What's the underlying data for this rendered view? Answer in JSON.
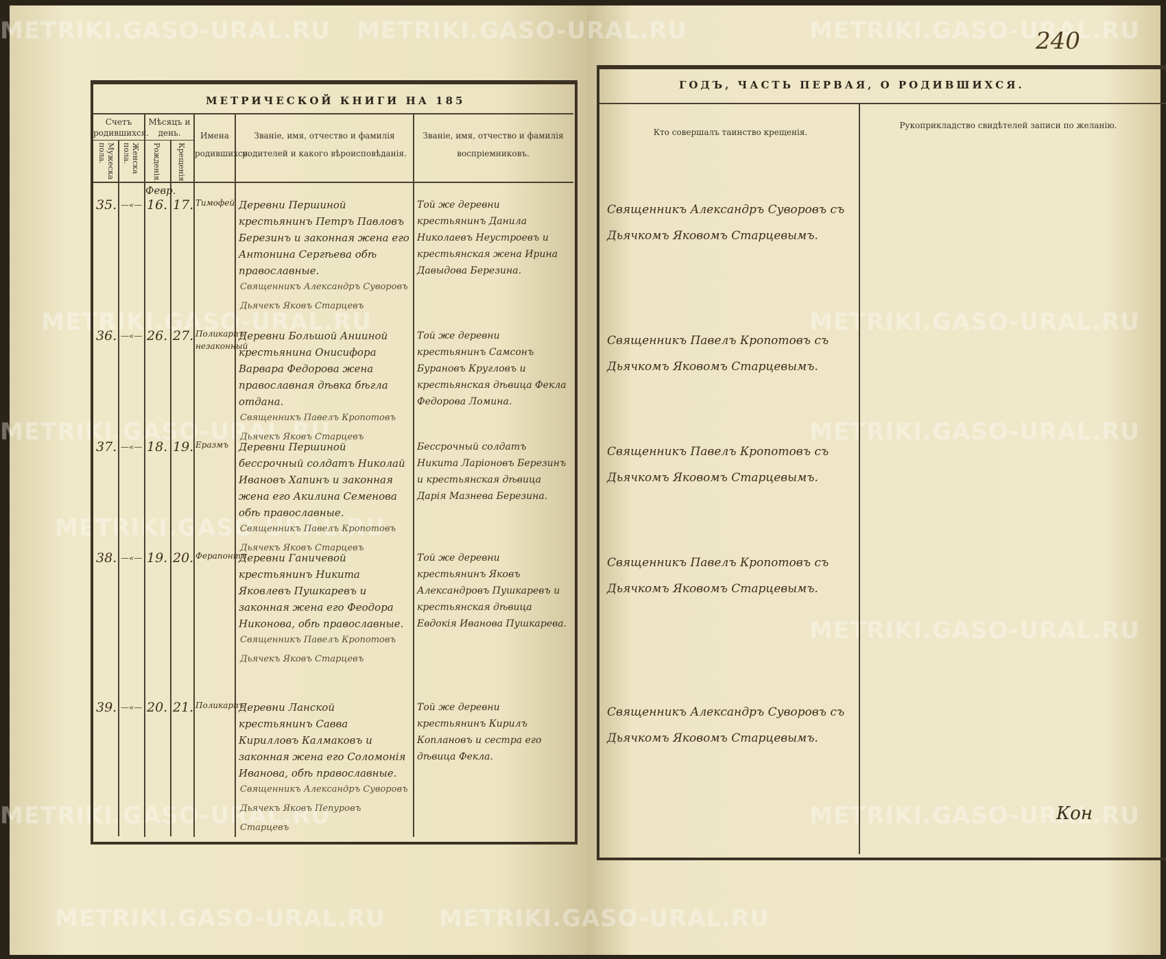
{
  "watermark": "METRIKI.GASO-URAL.RU",
  "left_page": {
    "title": "МЕТРИЧЕСКОЙ КНИГИ НА 185",
    "headers": {
      "count": "Счетъ родившихся.",
      "male": "Мужеска пола.",
      "female": "Женска пола.",
      "month_day": "Мѣсяцъ и день.",
      "birth": "Рожденія.",
      "baptism": "Крещенія.",
      "names": "Имена родившихся.",
      "parents": "Званіе, имя, отчество и фамилія родителей и какого вѣроисповѣданія.",
      "godparents": "Званіе, имя, отчество и фамилія воспріемниковъ."
    },
    "month": "Февр.",
    "entries": [
      {
        "no": "35.",
        "sex": "—«—",
        "birth": "16.",
        "baptism": "17.",
        "name": "Тимофей",
        "parents": "Деревни Першиной крестьянинъ Петръ Павловъ Березинъ и законная жена его Антонина Сергѣева обѣ православные.",
        "godparents": "Той же деревни крестьянинъ Данила Николаевъ Неустроевъ и крестьянская жена Ирина Давыдова Березина.",
        "signature": "Священникъ Александръ Суворовъ\nДьячекъ Яковъ Старцевъ"
      },
      {
        "no": "36.",
        "sex": "—«—",
        "birth": "26.",
        "baptism": "27.",
        "name": "Поликарпъ незаконный",
        "parents": "Деревни Большой Анииной крестьянина Онисифора Варвара Федорова жена православная дѣвка бѣгла отдана.",
        "godparents": "Той же деревни крестьянинъ Самсонъ Бурановъ Кругловъ и крестьянская дѣвица Фекла Федорова Ломина.",
        "signature": "Священникъ Павелъ Кропотовъ\nДьячекъ Яковъ Старцевъ"
      },
      {
        "no": "37.",
        "sex": "—«—",
        "birth": "18.",
        "baptism": "19.",
        "name": "Еразмъ",
        "parents": "Деревни Першиной бессрочный солдатъ Николай Ивановъ Хапинъ и законная жена его Акилина Семенова обѣ православные.",
        "godparents": "Бессрочный солдатъ Никита Ларіоновъ Березинъ и крестьянская дѣвица Дарія Мазнева Березина.",
        "signature": "Священникъ Павелъ Кропотовъ\nДьячекъ Яковъ Старцевъ"
      },
      {
        "no": "38.",
        "sex": "—«—",
        "birth": "19.",
        "baptism": "20.",
        "name": "Ферапонтъ",
        "parents": "Деревни Ганичевой крестьянинъ Никита Яковлевъ Пушкаревъ и законная жена его Феодора Никонова, обѣ православные.",
        "godparents": "Той же деревни крестьянинъ Яковъ Александровъ Пушкаревъ и крестьянская дѣвица Евдокія Иванова Пушкарева.",
        "signature": "Священникъ Павелъ Кропотовъ\nДьячекъ Яковъ Старцевъ"
      },
      {
        "no": "39.",
        "sex": "—«—",
        "birth": "20.",
        "baptism": "21.",
        "name": "Поликарпъ",
        "parents": "Деревни Ланской крестьянинъ Савва Кирилловъ Калмаковъ и законная жена его Соломонія Иванова, обѣ православные.",
        "godparents": "Той же деревни крестьянинъ Кирилъ Коплановъ и сестра его дѣвица Фекла.",
        "signature": "Священникъ Александръ Суворовъ\nДьячекъ Яковъ Пепуровъ Старцевъ"
      }
    ]
  },
  "right_page": {
    "page_number": "240",
    "title": "ГОДЪ, ЧАСТЬ ПЕРВАЯ, О РОДИВШИХСЯ.",
    "headers": {
      "performed_by": "Кто совершалъ таинство крещенія.",
      "witnesses": "Рукоприкладство свидѣтелей записи по желанію."
    },
    "entries": [
      "Священникъ Александръ Суворовъ съ Дьячкомъ Яковомъ Старцевымъ.",
      "Священникъ Павелъ Кропотовъ съ Дьячкомъ Яковомъ Старцевымъ.",
      "Священникъ Павелъ Кропотовъ съ Дьячкомъ Яковомъ Старцевымъ.",
      "Священникъ Павелъ Кропотовъ съ Дьячкомъ Яковомъ Старцевымъ.",
      "Священникъ Александръ Суворовъ съ Дьячкомъ Яковомъ Старцевымъ."
    ],
    "end_mark": "Кон"
  }
}
